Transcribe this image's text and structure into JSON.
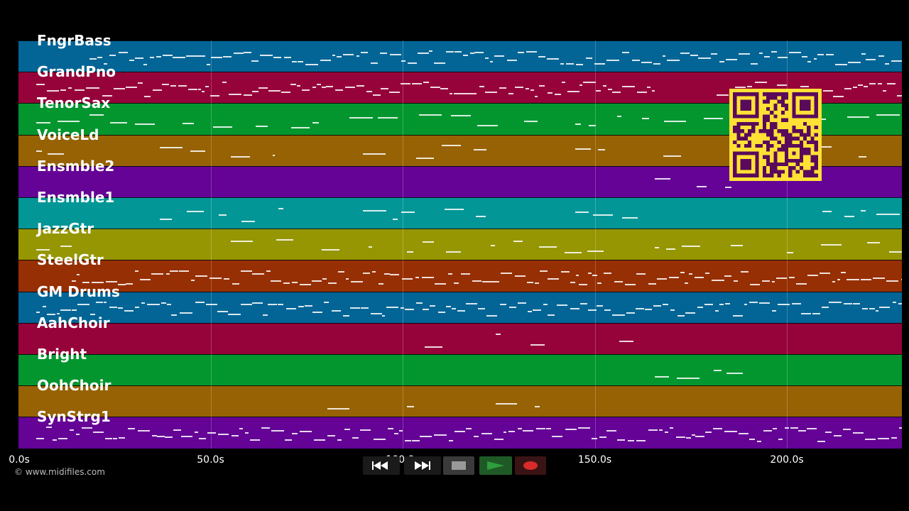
{
  "tracks": [
    {
      "name": "FngrBass",
      "color": "#036596"
    },
    {
      "name": "GrandPno",
      "color": "#96033a"
    },
    {
      "name": "TenorSax",
      "color": "#03962f"
    },
    {
      "name": "VoiceLd",
      "color": "#966203"
    },
    {
      "name": "Ensmble2",
      "color": "#640396"
    },
    {
      "name": "Ensmble1",
      "color": "#039696"
    },
    {
      "name": "JazzGtr",
      "color": "#969603"
    },
    {
      "name": "SteelGtr",
      "color": "#962f03"
    },
    {
      "name": "GM Drums",
      "color": "#036596"
    },
    {
      "name": "AahChoir",
      "color": "#96033a"
    },
    {
      "name": "Bright",
      "color": "#03962f"
    },
    {
      "name": "OohChoir",
      "color": "#966203"
    },
    {
      "name": "SynStrg1",
      "color": "#640396"
    }
  ],
  "timeline": {
    "ticks": [
      "0.0s",
      "50.0s",
      "100.0s",
      "150.0s",
      "200.0s"
    ],
    "max_seconds": 230
  },
  "credit": "© www.midifiles.com",
  "transport": {
    "rewind_icon": "rewind-icon",
    "fast_forward_icon": "fast-forward-icon",
    "stop_icon": "stop-icon",
    "play_icon": "play-icon",
    "record_icon": "record-icon"
  },
  "qr_icon": "qr-code-icon",
  "colors": {
    "qr_fg": "#5a0a5a",
    "qr_bg": "#ffe135",
    "play_green": "#2e9e3e",
    "record_red": "#d92b2b"
  }
}
